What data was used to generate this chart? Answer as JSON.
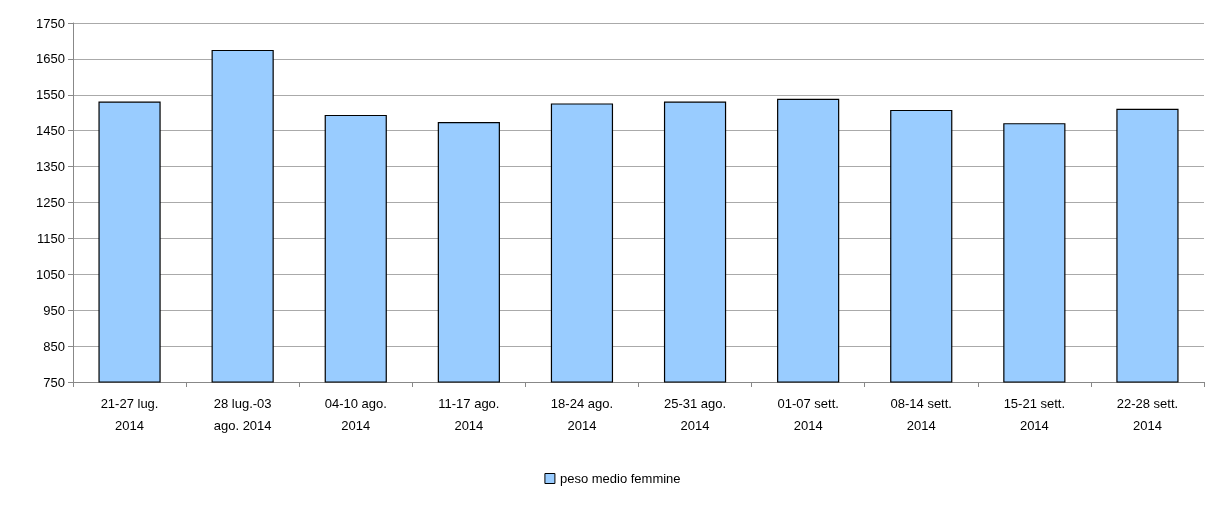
{
  "chart_data": {
    "type": "bar",
    "categories": [
      "21-27 lug.\n2014",
      "28 lug.-03\nago. 2014",
      "04-10 ago.\n2014",
      "11-17 ago.\n2014",
      "18-24 ago.\n2014",
      "25-31 ago.\n2014",
      "01-07 sett.\n2014",
      "08-14 sett.\n2014",
      "15-21 sett.\n2014",
      "22-28 sett.\n2014"
    ],
    "series": [
      {
        "name": "peso medio femmine",
        "color": "#99ccff",
        "values": [
          1531,
          1675,
          1494,
          1474,
          1526,
          1531,
          1539,
          1508,
          1471,
          1511
        ]
      }
    ],
    "ylim": [
      750,
      1750
    ],
    "yticks": [
      750,
      850,
      950,
      1050,
      1150,
      1250,
      1350,
      1450,
      1550,
      1650,
      1750
    ],
    "grid": "y",
    "legend": "bottom"
  }
}
